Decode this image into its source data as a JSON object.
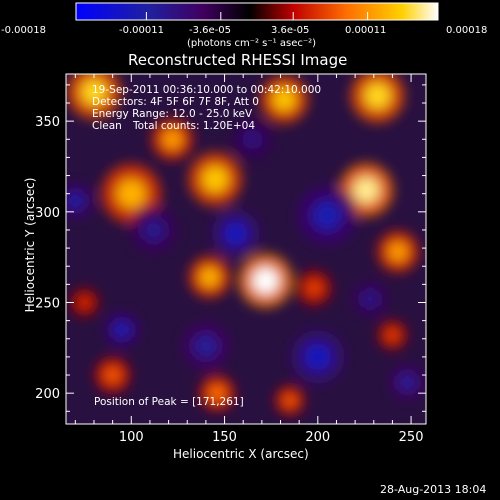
{
  "colorbar": {
    "tick_labels": [
      "-0.00018",
      "-0.00011",
      "-3.6e-05",
      "3.6e-05",
      "0.00011",
      "0.00018"
    ],
    "tick_values": [
      -0.00018,
      -0.00011,
      -3.6e-05,
      3.6e-05,
      0.00011,
      0.00018
    ],
    "range": [
      -0.00018,
      0.00018
    ],
    "unit_label": "(photons cm⁻² s⁻¹ asec⁻²)",
    "colors": [
      "#0000ff",
      "#202070",
      "#000000",
      "#c00000",
      "#ff7000",
      "#ffd000",
      "#ffffff"
    ]
  },
  "chart_data": {
    "type": "heatmap",
    "title": "Reconstructed RHESSI Image",
    "xlabel": "Heliocentric X (arcsec)",
    "ylabel": "Heliocentric Y (arcsec)",
    "xlim": [
      65,
      258
    ],
    "ylim": [
      183,
      376
    ],
    "x_ticks": [
      100,
      150,
      200,
      250
    ],
    "y_ticks": [
      200,
      250,
      300,
      350
    ],
    "peak_position": [
      171,
      261
    ],
    "sources": [
      {
        "x": 172,
        "y": 262,
        "r": 9,
        "v": 0.00018
      },
      {
        "x": 142,
        "y": 264,
        "r": 7,
        "v": 0.00012
      },
      {
        "x": 100,
        "y": 310,
        "r": 10,
        "v": 0.00012
      },
      {
        "x": 145,
        "y": 318,
        "r": 9,
        "v": 0.00013
      },
      {
        "x": 80,
        "y": 366,
        "r": 9,
        "v": 0.00014
      },
      {
        "x": 182,
        "y": 362,
        "r": 8,
        "v": 0.00013
      },
      {
        "x": 232,
        "y": 364,
        "r": 9,
        "v": 0.00014
      },
      {
        "x": 226,
        "y": 312,
        "r": 9,
        "v": 0.00016
      },
      {
        "x": 243,
        "y": 278,
        "r": 7,
        "v": 0.00011
      },
      {
        "x": 198,
        "y": 258,
        "r": 6,
        "v": 7e-05
      },
      {
        "x": 90,
        "y": 210,
        "r": 6,
        "v": 8e-05
      },
      {
        "x": 146,
        "y": 200,
        "r": 6,
        "v": 9e-05
      },
      {
        "x": 185,
        "y": 196,
        "r": 5,
        "v": 8e-05
      },
      {
        "x": 240,
        "y": 232,
        "r": 5,
        "v": 7e-05
      },
      {
        "x": 122,
        "y": 340,
        "r": 7,
        "v": 0.00011
      },
      {
        "x": 75,
        "y": 250,
        "r": 5,
        "v": 6e-05
      },
      {
        "x": 95,
        "y": 235,
        "r": 6,
        "v": -0.00012
      },
      {
        "x": 112,
        "y": 290,
        "r": 8,
        "v": -9e-05
      },
      {
        "x": 156,
        "y": 288,
        "r": 8,
        "v": -0.00013
      },
      {
        "x": 205,
        "y": 298,
        "r": 10,
        "v": -0.00012
      },
      {
        "x": 140,
        "y": 226,
        "r": 8,
        "v": -0.0001
      },
      {
        "x": 200,
        "y": 220,
        "r": 9,
        "v": -0.00013
      },
      {
        "x": 228,
        "y": 252,
        "r": 6,
        "v": -9e-05
      },
      {
        "x": 70,
        "y": 306,
        "r": 6,
        "v": -0.00011
      },
      {
        "x": 165,
        "y": 340,
        "r": 7,
        "v": -8e-05
      },
      {
        "x": 248,
        "y": 206,
        "r": 6,
        "v": -0.0001
      }
    ]
  },
  "annotations": {
    "time_range": "19-Sep-2011 00:36:10.000 to 00:42:10.000",
    "detectors": "Detectors: 4F 5F 6F 7F 8F, Att 0",
    "energy": "Energy Range: 12.0 - 25.0 keV",
    "method": "Clean",
    "counts": "Total counts: 1.20E+04",
    "peak": "Position of Peak = [171,261]"
  },
  "footer": {
    "timestamp": "28-Aug-2013 18:04"
  }
}
